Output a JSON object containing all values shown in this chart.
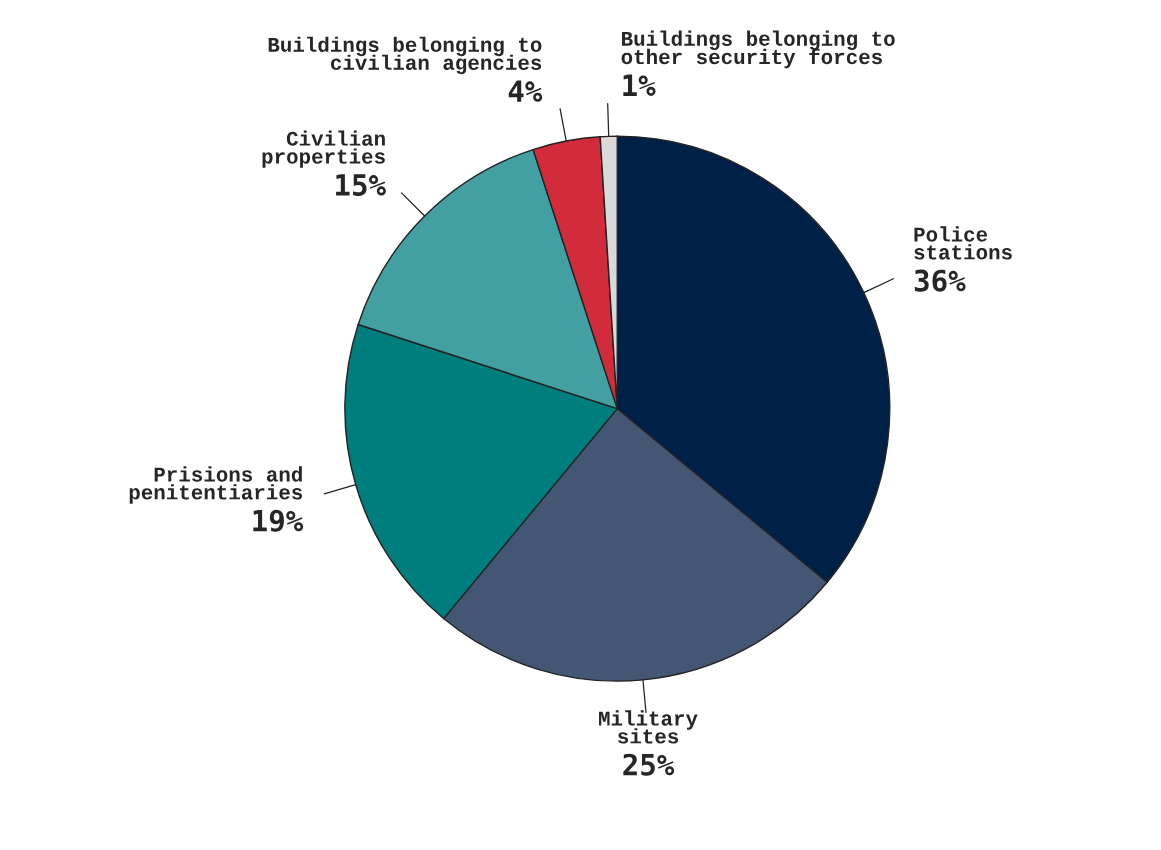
{
  "chart_data": {
    "type": "pie",
    "categories": [
      "Police\nstations",
      "Military\nsites",
      "Prisions and\npenitentiaries",
      "Civilian\nproperties",
      "Buildings belonging to\ncivilian agencies",
      "Buildings belonging to\nother security forces"
    ],
    "values": [
      36,
      25,
      19,
      15,
      4,
      1
    ],
    "value_labels": [
      "36%",
      "25%",
      "19%",
      "15%",
      "4%",
      "1%"
    ],
    "colors": [
      "#002147",
      "#435775",
      "#007d7d",
      "#43a0a2",
      "#d22c3c",
      "#d9d9d9"
    ]
  }
}
